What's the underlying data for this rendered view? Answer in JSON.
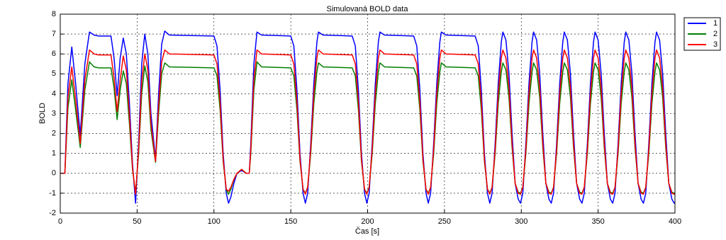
{
  "chart_data": {
    "type": "line",
    "title": "Simulovaná BOLD data",
    "xlabel": "Čas [s]",
    "ylabel": "BOLD",
    "xlim": [
      0,
      400
    ],
    "xticks": [
      0,
      50,
      100,
      150,
      200,
      250,
      300,
      350,
      400
    ],
    "ylim": [
      -2,
      8
    ],
    "yticks": [
      -2,
      -1,
      0,
      1,
      2,
      3,
      4,
      5,
      6,
      7,
      8
    ],
    "grid": true,
    "legend": "upper-right-outside",
    "x": [
      0,
      3,
      5,
      7.5,
      10,
      13,
      16,
      19,
      22,
      25,
      33,
      35,
      37,
      39,
      41,
      43,
      45,
      47,
      49,
      51,
      53,
      55,
      57,
      59,
      62,
      64,
      66,
      68,
      71,
      100,
      102,
      104,
      106,
      108,
      109.5,
      111,
      113,
      115,
      118,
      121,
      123,
      124,
      126,
      128,
      131,
      150,
      152,
      154,
      156,
      158,
      159.5,
      161,
      163,
      165,
      167,
      168,
      171,
      190,
      192,
      194,
      196,
      198,
      199.5,
      201,
      203,
      205,
      207,
      208,
      211,
      230,
      232,
      234,
      236,
      238,
      239.5,
      241,
      243,
      245,
      247,
      248,
      251,
      270,
      272,
      274,
      276,
      278,
      279.5,
      281,
      283,
      285,
      287,
      288,
      290,
      292,
      294,
      296,
      298,
      299.5,
      301,
      303,
      305,
      307,
      308,
      310,
      312,
      314,
      316,
      318,
      319.5,
      321,
      323,
      325,
      327,
      328,
      330,
      332,
      334,
      336,
      338,
      339.5,
      341,
      343,
      345,
      347,
      348,
      350,
      352,
      354,
      356,
      358,
      359.5,
      361,
      363,
      365,
      367,
      368,
      370,
      372,
      374,
      376,
      378,
      379.5,
      381,
      383,
      385,
      387,
      388,
      390,
      392,
      394,
      396,
      398,
      399.5,
      400
    ],
    "series": [
      {
        "name": "1",
        "color": "#0000ff",
        "values": [
          0,
          0,
          4.5,
          6.35,
          4.5,
          1.9,
          5.5,
          7.1,
          6.95,
          6.9,
          6.9,
          5.8,
          3.9,
          5.8,
          6.8,
          6.0,
          3.5,
          0.5,
          -1.5,
          1.5,
          5.5,
          7.0,
          6.0,
          3.0,
          0.7,
          4.0,
          6.5,
          7.15,
          6.95,
          6.9,
          6.4,
          4.2,
          1.0,
          -1.0,
          -1.5,
          -1.2,
          -0.5,
          0,
          0.15,
          0,
          0,
          1.5,
          5.5,
          7.1,
          6.95,
          6.9,
          6.4,
          4.2,
          1.0,
          -1.0,
          -1.5,
          -1.0,
          1.5,
          4.5,
          6.6,
          7.1,
          6.95,
          6.9,
          6.4,
          4.2,
          1.0,
          -1.0,
          -1.5,
          -1.0,
          1.5,
          4.5,
          6.6,
          7.1,
          6.95,
          6.9,
          6.4,
          4.2,
          1.0,
          -1.0,
          -1.5,
          -1.0,
          1.5,
          4.5,
          6.6,
          7.1,
          6.95,
          6.9,
          6.4,
          4.2,
          1.0,
          -1.0,
          -1.5,
          -1.0,
          1.5,
          4.5,
          6.6,
          7.1,
          6.7,
          5.0,
          2.0,
          -0.5,
          -1.3,
          -1.5,
          -1.0,
          1.5,
          4.5,
          6.6,
          7.1,
          6.7,
          5.0,
          2.0,
          -0.5,
          -1.3,
          -1.5,
          -1.0,
          1.5,
          4.5,
          6.6,
          7.1,
          6.7,
          5.0,
          2.0,
          -0.5,
          -1.3,
          -1.5,
          -1.0,
          1.5,
          4.5,
          6.6,
          7.1,
          6.7,
          5.0,
          2.0,
          -0.5,
          -1.3,
          -1.5,
          -1.0,
          1.5,
          4.5,
          6.6,
          7.1,
          6.7,
          5.0,
          2.0,
          -0.5,
          -1.3,
          -1.5,
          -1.0,
          1.5,
          4.5,
          6.6,
          7.1,
          6.7,
          5.0,
          2.0,
          -0.5,
          -1.3,
          -1.5,
          -1.45
        ]
      },
      {
        "name": "2",
        "color": "#008000",
        "values": [
          0,
          0,
          3.3,
          4.7,
          3.2,
          1.3,
          4.2,
          5.6,
          5.35,
          5.3,
          5.3,
          4.3,
          2.7,
          4.2,
          5.15,
          4.5,
          2.5,
          0.2,
          -1.0,
          1.0,
          4.0,
          5.4,
          4.6,
          2.2,
          0.55,
          3.0,
          5.0,
          5.55,
          5.35,
          5.3,
          4.9,
          3.2,
          0.6,
          -0.8,
          -1.05,
          -0.8,
          -0.3,
          0,
          0.2,
          0,
          0,
          1.0,
          4.2,
          5.6,
          5.35,
          5.3,
          4.9,
          3.2,
          0.6,
          -0.8,
          -1.0,
          -0.7,
          1.0,
          3.5,
          5.1,
          5.55,
          5.35,
          5.3,
          4.9,
          3.2,
          0.6,
          -0.8,
          -1.0,
          -0.7,
          1.0,
          3.5,
          5.1,
          5.55,
          5.35,
          5.3,
          4.9,
          3.2,
          0.6,
          -0.8,
          -1.0,
          -0.7,
          1.0,
          3.5,
          5.1,
          5.55,
          5.35,
          5.3,
          4.9,
          3.2,
          0.6,
          -0.8,
          -1.0,
          -0.7,
          1.0,
          3.5,
          5.1,
          5.55,
          5.2,
          3.8,
          1.3,
          -0.5,
          -0.95,
          -1.0,
          -0.7,
          1.0,
          3.5,
          5.1,
          5.55,
          5.2,
          3.8,
          1.3,
          -0.5,
          -0.95,
          -1.0,
          -0.7,
          1.0,
          3.5,
          5.1,
          5.55,
          5.2,
          3.8,
          1.3,
          -0.5,
          -0.95,
          -1.0,
          -0.7,
          1.0,
          3.5,
          5.1,
          5.55,
          5.2,
          3.8,
          1.3,
          -0.5,
          -0.95,
          -1.0,
          -0.7,
          1.0,
          3.5,
          5.1,
          5.55,
          5.2,
          3.8,
          1.3,
          -0.5,
          -0.95,
          -1.0,
          -0.7,
          1.0,
          3.5,
          5.1,
          5.55,
          5.2,
          3.8,
          1.3,
          -0.5,
          -0.95,
          -1.0,
          -0.98
        ]
      },
      {
        "name": "3",
        "color": "#ff0000",
        "values": [
          0,
          0,
          3.8,
          5.35,
          3.7,
          1.5,
          4.7,
          6.2,
          6.0,
          5.95,
          5.95,
          4.8,
          3.1,
          4.7,
          5.9,
          5.2,
          2.9,
          0.3,
          -1.05,
          1.2,
          4.6,
          6.0,
          5.2,
          2.5,
          0.6,
          3.4,
          5.6,
          6.2,
          6.0,
          5.95,
          5.5,
          3.6,
          0.7,
          -0.8,
          -0.9,
          -0.7,
          -0.3,
          0,
          0.2,
          0,
          0,
          1.2,
          4.7,
          6.2,
          6.0,
          5.95,
          5.5,
          3.6,
          0.7,
          -0.8,
          -1.05,
          -0.7,
          1.2,
          4.0,
          5.8,
          6.2,
          6.0,
          5.95,
          5.5,
          3.6,
          0.7,
          -0.8,
          -1.05,
          -0.7,
          1.2,
          4.0,
          5.8,
          6.2,
          6.0,
          5.95,
          5.5,
          3.6,
          0.7,
          -0.8,
          -1.05,
          -0.7,
          1.2,
          4.0,
          5.8,
          6.2,
          6.0,
          5.95,
          5.5,
          3.6,
          0.7,
          -0.8,
          -1.05,
          -0.7,
          1.2,
          4.0,
          5.8,
          6.2,
          5.8,
          4.3,
          1.5,
          -0.5,
          -1.0,
          -1.05,
          -0.7,
          1.2,
          4.0,
          5.8,
          6.2,
          5.8,
          4.3,
          1.5,
          -0.5,
          -1.0,
          -1.05,
          -0.7,
          1.2,
          4.0,
          5.8,
          6.2,
          5.8,
          4.3,
          1.5,
          -0.5,
          -1.0,
          -1.05,
          -0.7,
          1.2,
          4.0,
          5.8,
          6.2,
          5.8,
          4.3,
          1.5,
          -0.5,
          -1.0,
          -1.05,
          -0.7,
          1.2,
          4.0,
          5.8,
          6.2,
          5.8,
          4.3,
          1.5,
          -0.5,
          -1.0,
          -1.05,
          -0.7,
          1.2,
          4.0,
          5.8,
          6.2,
          5.8,
          4.3,
          1.5,
          -0.5,
          -1.0,
          -1.05,
          -1.0
        ]
      }
    ]
  }
}
